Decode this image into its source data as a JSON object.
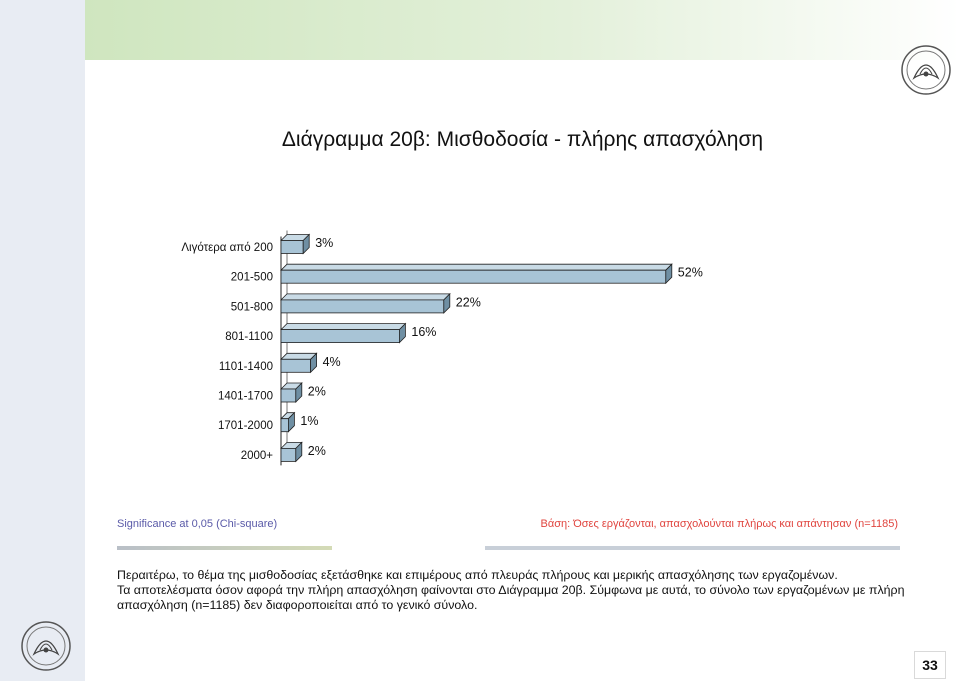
{
  "title": "Διάγραμμα 20β: Μισθοδοσία - πλήρης απασχόληση",
  "chart_data": {
    "type": "bar",
    "orientation": "horizontal",
    "categories": [
      "Λιγότερα από 200",
      "201-500",
      "501-800",
      "801-1100",
      "1101-1400",
      "1401-1700",
      "1701-2000",
      "2000+"
    ],
    "values": [
      3,
      52,
      22,
      16,
      4,
      2,
      1,
      2
    ],
    "data_labels": [
      "3%",
      "52%",
      "22%",
      "16%",
      "4%",
      "2%",
      "1%",
      "2%"
    ],
    "unit": "%",
    "xlim": [
      0,
      55
    ],
    "grid": false,
    "legend": "none",
    "bar_color": "#a8c4d6"
  },
  "footer": {
    "significance": "Significance at 0,05 (Chi-square)",
    "base": "Βάση: Όσες εργάζονται, απασχολούνται πλήρως και απάντησαν (n=1185)"
  },
  "body": {
    "line1": "Περαιτέρω, το θέμα της μισθοδοσίας εξετάσθηκε και επιμέρους από πλευράς πλήρους και μερικής απασχόλησης των εργαζομένων.",
    "line2": "Τα αποτελέσματα όσον αφορά την πλήρη απασχόληση φαίνονται στο Διάγραμμα 20β. Σύμφωνα με αυτά, το σύνολο των εργαζομένων με πλήρη απασχόληση (n=1185) δεν διαφοροποιείται από το γενικό σύνολο."
  },
  "page_number": "33",
  "icons": [
    "logo-icon"
  ]
}
